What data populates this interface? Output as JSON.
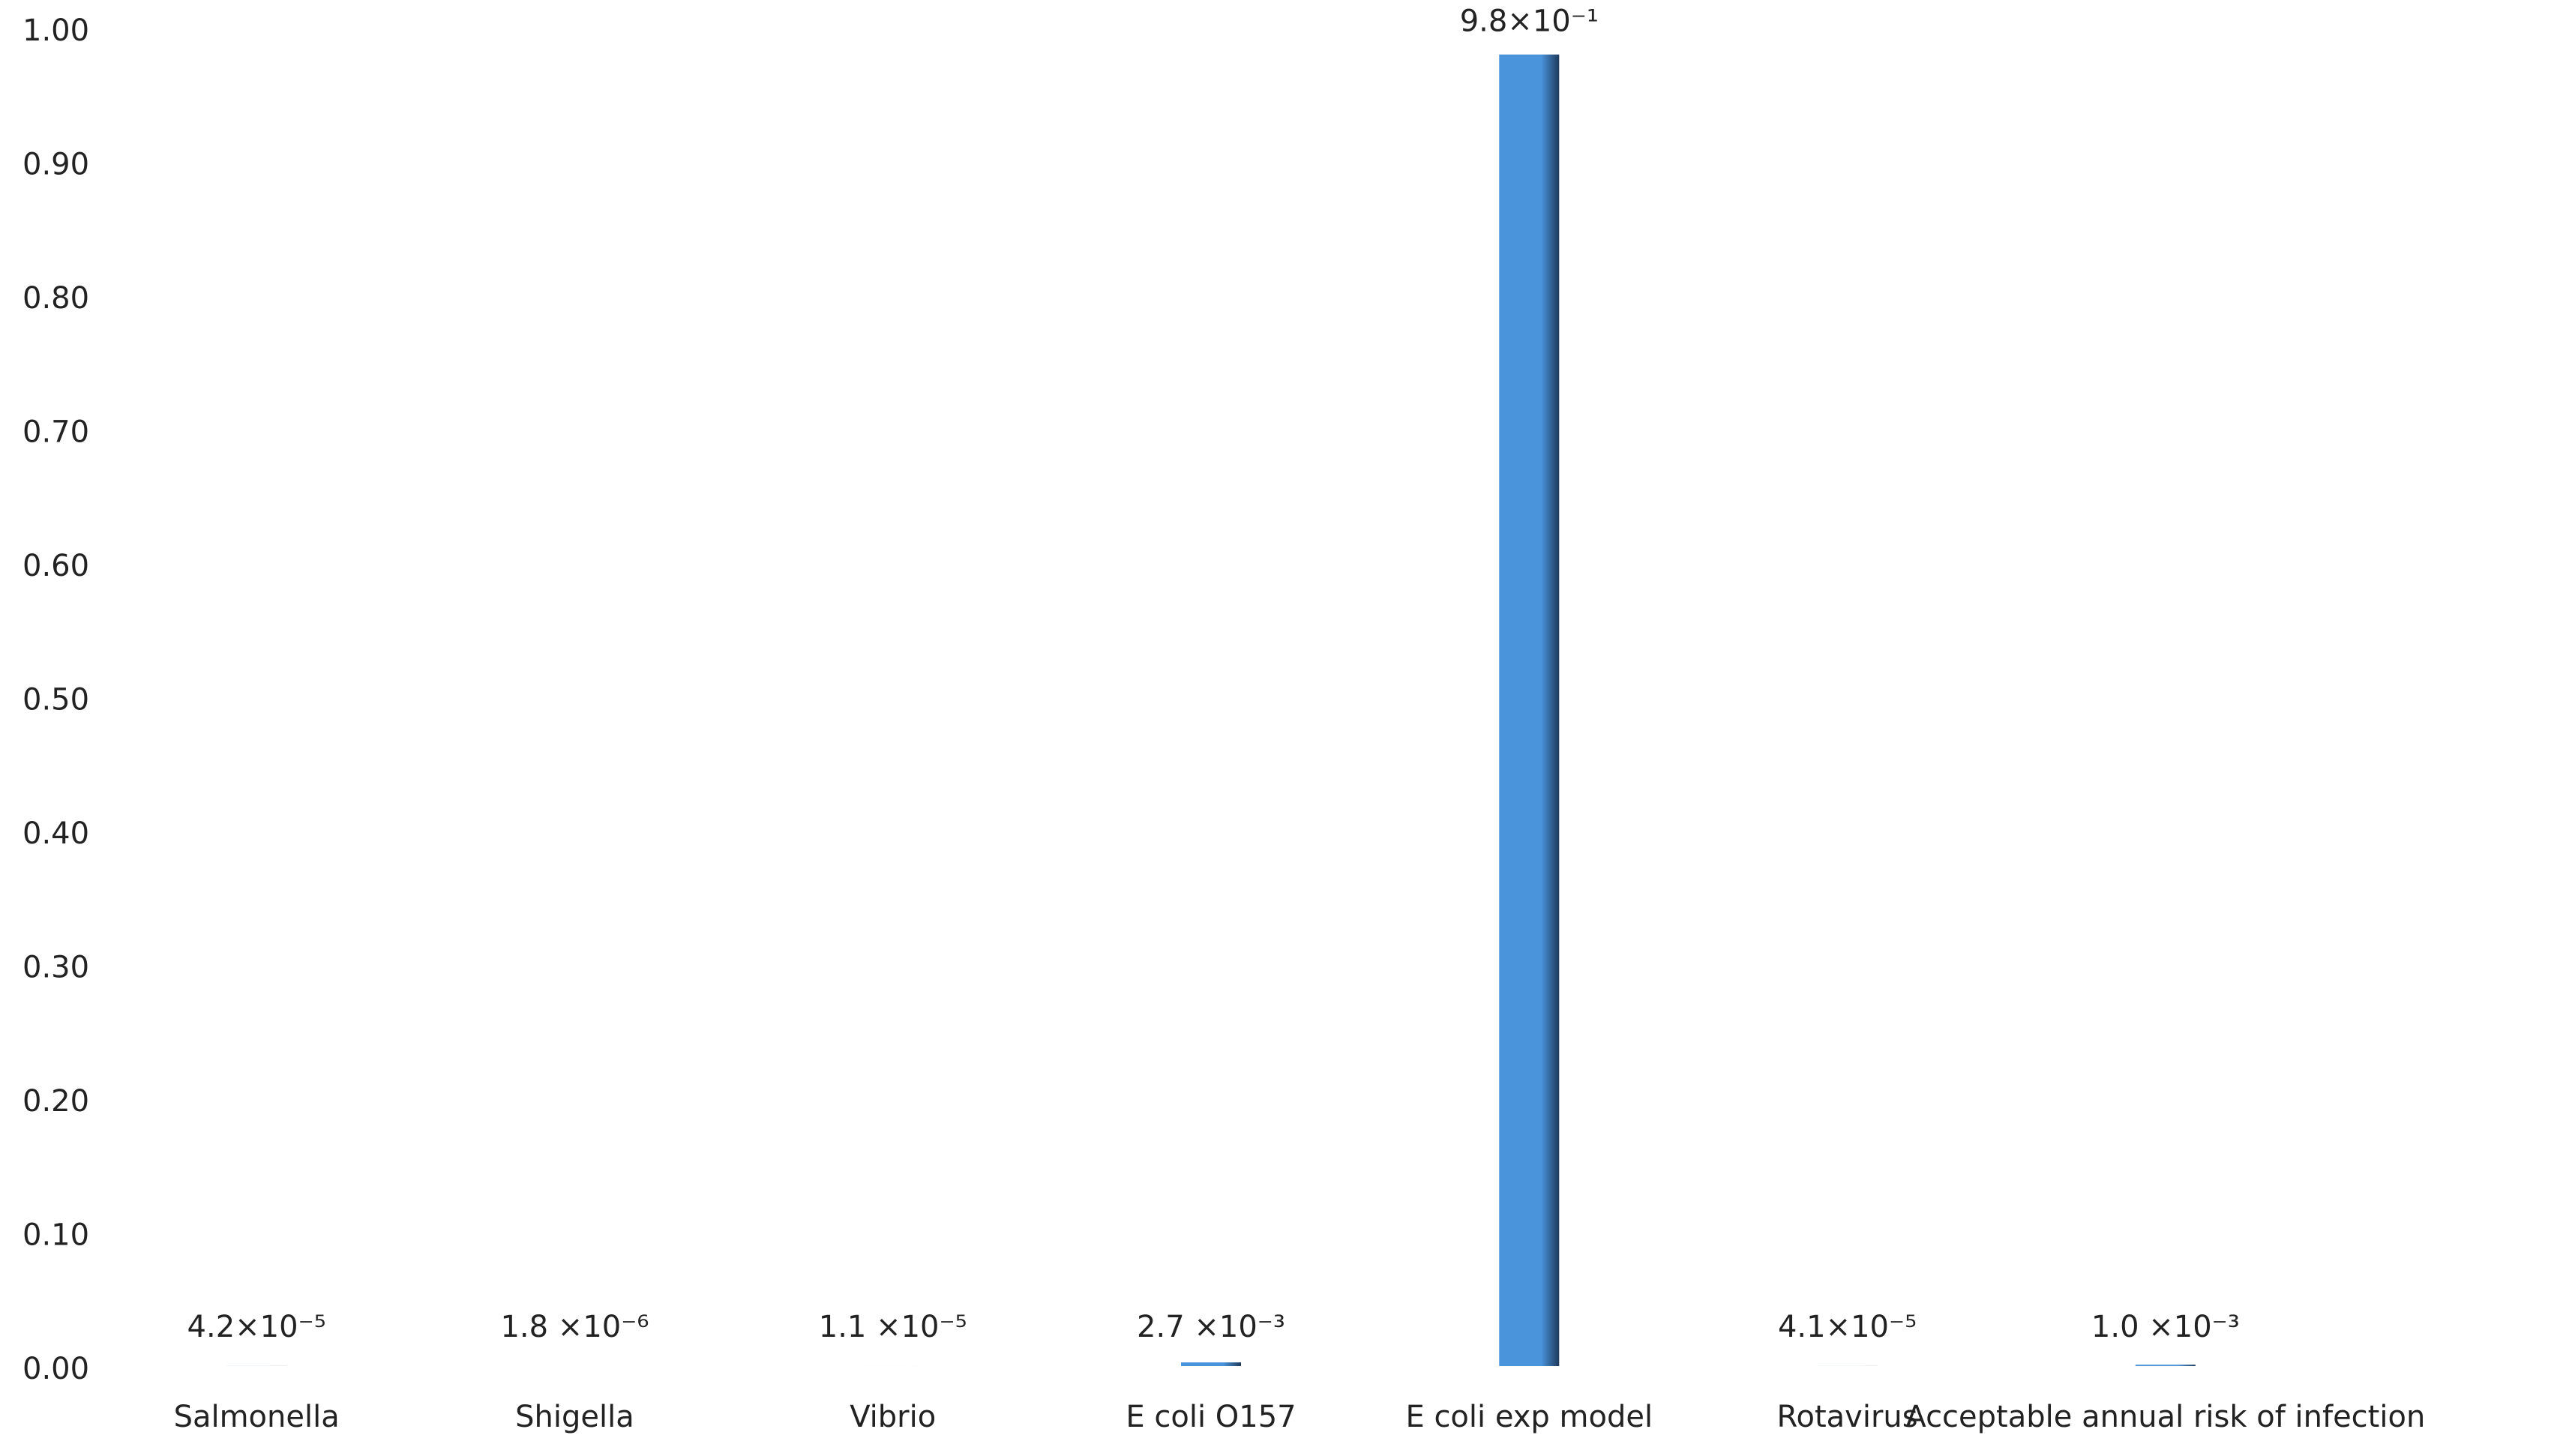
{
  "chart_data": {
    "type": "bar",
    "categories": [
      "Salmonella",
      "Shigella",
      "Vibrio",
      "E coli O157",
      "E coli exp model",
      "Rotavirus",
      "Acceptable annual risk of infection"
    ],
    "values": [
      4.2e-05,
      1.8e-06,
      1.1e-05,
      0.0027,
      0.98,
      4.1e-05,
      0.001
    ],
    "value_labels": [
      "4.2×10⁻⁵",
      "1.8 ×10⁻⁶",
      "1.1 ×10⁻⁵",
      "2.7 ×10⁻³",
      "9.8×10⁻¹",
      "4.1×10⁻⁵",
      "1.0 ×10⁻³"
    ],
    "color": "#4a94dc",
    "ylim": [
      0,
      1
    ],
    "yticks": [
      {
        "value": 0,
        "label": "0.00"
      },
      {
        "value": 0.1,
        "label": "0.10"
      },
      {
        "value": 0.2,
        "label": "0.20"
      },
      {
        "value": 0.3,
        "label": "0.30"
      },
      {
        "value": 0.4,
        "label": "0.40"
      },
      {
        "value": 0.5,
        "label": "0.50"
      },
      {
        "value": 0.6,
        "label": "0.60"
      },
      {
        "value": 0.7,
        "label": "0.70"
      },
      {
        "value": 0.8,
        "label": "0.80"
      },
      {
        "value": 0.9,
        "label": "0.90"
      },
      {
        "value": 1,
        "label": "1.00"
      }
    ],
    "grid": false
  }
}
